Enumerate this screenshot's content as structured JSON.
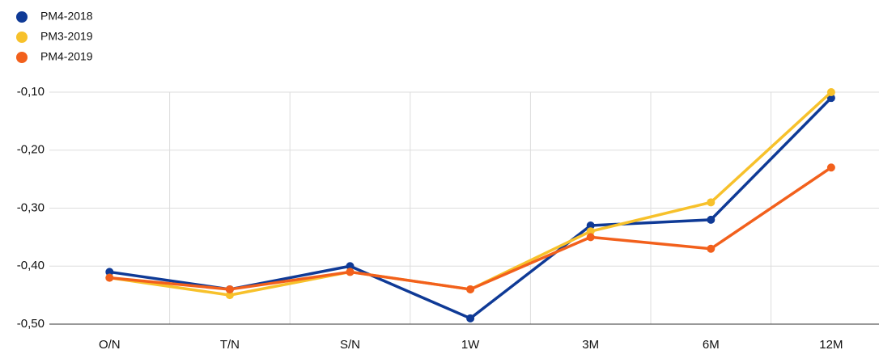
{
  "chart_data": {
    "type": "line",
    "categories": [
      "O/N",
      "T/N",
      "S/N",
      "1W",
      "3M",
      "6M",
      "12M"
    ],
    "series": [
      {
        "name": "PM4-2018",
        "color": "#0f3a96",
        "values": [
          -0.41,
          -0.44,
          -0.4,
          -0.49,
          -0.33,
          -0.32,
          -0.11
        ]
      },
      {
        "name": "PM3-2019",
        "color": "#f7c12b",
        "values": [
          -0.42,
          -0.45,
          -0.41,
          -0.44,
          -0.34,
          -0.29,
          -0.1
        ]
      },
      {
        "name": "PM4-2019",
        "color": "#f2601c",
        "values": [
          -0.42,
          -0.44,
          -0.41,
          -0.44,
          -0.35,
          -0.37,
          -0.23
        ]
      }
    ],
    "ylim": [
      -0.5,
      -0.1
    ],
    "yticks": [
      {
        "value": -0.5,
        "label": "-0,50"
      },
      {
        "value": -0.4,
        "label": "-0,40"
      },
      {
        "value": -0.3,
        "label": "-0,30"
      },
      {
        "value": -0.2,
        "label": "-0,20"
      },
      {
        "value": -0.1,
        "label": "-0,10"
      }
    ],
    "grid": true,
    "legend": "top-left"
  }
}
